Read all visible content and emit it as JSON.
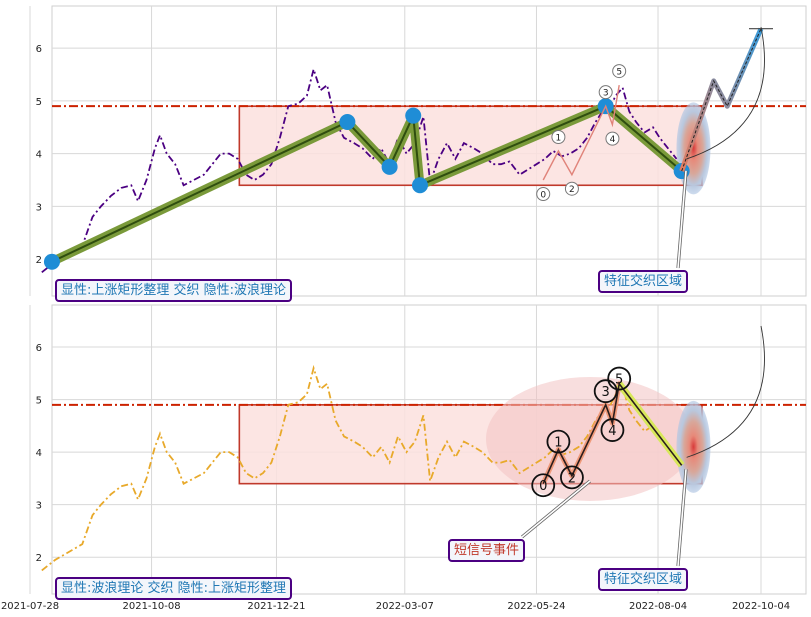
{
  "chart_data": [
    {
      "type": "line",
      "panel": "top",
      "ylim": [
        1.3,
        6.8
      ],
      "yticks": [
        "2",
        "3",
        "4",
        "5",
        "6"
      ],
      "grid": true,
      "reference_line": {
        "y": 4.9,
        "color": "#cc2200",
        "style": "dash-dot"
      },
      "box": {
        "x0": "2021-11-29",
        "x1": "2022-08-30",
        "y0": 3.4,
        "y1": 4.9,
        "fill": "#fbe1de",
        "edge": "#c0392b"
      },
      "price_series": {
        "color": "#4b0082",
        "style": "dash-dot",
        "points": [
          [
            "2021-08-04",
            1.75
          ],
          [
            "2021-08-12",
            1.95
          ],
          [
            "2021-08-20",
            2.1
          ],
          [
            "2021-08-28",
            2.25
          ],
          [
            "2021-09-03",
            2.8
          ],
          [
            "2021-09-08",
            3.0
          ],
          [
            "2021-09-14",
            3.2
          ],
          [
            "2021-09-20",
            3.35
          ],
          [
            "2021-09-26",
            3.4
          ],
          [
            "2021-09-30",
            3.1
          ],
          [
            "2021-10-05",
            3.5
          ],
          [
            "2021-10-10",
            4.1
          ],
          [
            "2021-10-13",
            4.35
          ],
          [
            "2021-10-17",
            4.0
          ],
          [
            "2021-10-22",
            3.8
          ],
          [
            "2021-10-27",
            3.4
          ],
          [
            "2021-11-02",
            3.5
          ],
          [
            "2021-11-08",
            3.6
          ],
          [
            "2021-11-13",
            3.8
          ],
          [
            "2021-11-18",
            4.0
          ],
          [
            "2021-11-23",
            4.0
          ],
          [
            "2021-11-28",
            3.9
          ],
          [
            "2021-12-03",
            3.6
          ],
          [
            "2021-12-08",
            3.5
          ],
          [
            "2021-12-13",
            3.6
          ],
          [
            "2021-12-18",
            3.8
          ],
          [
            "2021-12-23",
            4.3
          ],
          [
            "2021-12-28",
            4.9
          ],
          [
            "2022-01-03",
            4.95
          ],
          [
            "2022-01-08",
            5.1
          ],
          [
            "2022-01-12",
            5.6
          ],
          [
            "2022-01-16",
            5.2
          ],
          [
            "2022-01-20",
            5.3
          ],
          [
            "2022-01-25",
            4.6
          ],
          [
            "2022-01-30",
            4.3
          ],
          [
            "2022-02-05",
            4.2
          ],
          [
            "2022-02-10",
            4.1
          ],
          [
            "2022-02-16",
            3.9
          ],
          [
            "2022-02-21",
            4.1
          ],
          [
            "2022-02-26",
            3.8
          ],
          [
            "2022-03-03",
            4.3
          ],
          [
            "2022-03-08",
            4.0
          ],
          [
            "2022-03-13",
            4.2
          ],
          [
            "2022-03-18",
            4.7
          ],
          [
            "2022-03-22",
            3.45
          ],
          [
            "2022-03-27",
            3.9
          ],
          [
            "2022-04-01",
            4.2
          ],
          [
            "2022-04-06",
            3.9
          ],
          [
            "2022-04-11",
            4.2
          ],
          [
            "2022-04-17",
            4.1
          ],
          [
            "2022-04-22",
            4.0
          ],
          [
            "2022-04-28",
            3.8
          ],
          [
            "2022-05-03",
            3.8
          ],
          [
            "2022-05-08",
            3.85
          ],
          [
            "2022-05-14",
            3.6
          ],
          [
            "2022-05-19",
            3.7
          ],
          [
            "2022-05-24",
            3.8
          ],
          [
            "2022-05-29",
            3.9
          ],
          [
            "2022-06-03",
            4.05
          ],
          [
            "2022-06-08",
            3.95
          ],
          [
            "2022-06-13",
            4.0
          ],
          [
            "2022-06-18",
            4.1
          ],
          [
            "2022-06-23",
            4.3
          ],
          [
            "2022-06-28",
            4.6
          ],
          [
            "2022-07-02",
            4.8
          ],
          [
            "2022-07-06",
            4.85
          ],
          [
            "2022-07-10",
            5.1
          ],
          [
            "2022-07-14",
            5.25
          ],
          [
            "2022-07-18",
            4.8
          ],
          [
            "2022-07-22",
            4.6
          ],
          [
            "2022-07-27",
            4.4
          ],
          [
            "2022-08-01",
            4.5
          ],
          [
            "2022-08-05",
            4.3
          ],
          [
            "2022-08-10",
            4.1
          ],
          [
            "2022-08-15",
            3.9
          ]
        ]
      },
      "trend_series": {
        "color": "#7a9a3a",
        "points": [
          [
            "2021-08-10",
            1.95
          ],
          [
            "2022-02-01",
            4.6
          ],
          [
            "2022-02-26",
            3.75
          ],
          [
            "2022-03-12",
            4.72
          ],
          [
            "2022-03-16",
            3.4
          ],
          [
            "2022-07-04",
            4.9
          ],
          [
            "2022-08-18",
            3.67
          ]
        ]
      },
      "wave_labels": [
        {
          "label": "0",
          "x": "2022-05-28",
          "y": 3.5
        },
        {
          "label": "1",
          "x": "2022-06-06",
          "y": 4.05
        },
        {
          "label": "2",
          "x": "2022-06-14",
          "y": 3.6
        },
        {
          "label": "3",
          "x": "2022-07-04",
          "y": 4.9
        },
        {
          "label": "4",
          "x": "2022-07-08",
          "y": 4.55
        },
        {
          "label": "5",
          "x": "2022-07-12",
          "y": 5.3
        }
      ],
      "projection": [
        [
          "2022-08-18",
          3.67
        ],
        [
          "2022-09-06",
          5.38
        ],
        [
          "2022-09-14",
          4.9
        ],
        [
          "2022-10-04",
          6.37
        ]
      ],
      "annotations": {
        "title_box": "显性:上涨矩形整理 交织 隐性:波浪理论",
        "zone_box": "特征交织区域"
      }
    },
    {
      "type": "line",
      "panel": "bottom",
      "ylim": [
        1.3,
        6.8
      ],
      "yticks": [
        "2",
        "3",
        "4",
        "5",
        "6"
      ],
      "grid": true,
      "reference_line": {
        "y": 4.9,
        "color": "#cc2200",
        "style": "dash-dot"
      },
      "box": {
        "x0": "2021-11-29",
        "x1": "2022-08-30",
        "y0": 3.4,
        "y1": 4.9,
        "fill": "#fbe1de",
        "edge": "#c0392b"
      },
      "price_series": {
        "color": "#e8a92a",
        "style": "dash-dot"
      },
      "wave_series": {
        "color": "#2b1d1d",
        "points": [
          [
            "2022-05-28",
            3.4
          ],
          [
            "2022-06-06",
            4.05
          ],
          [
            "2022-06-14",
            3.55
          ],
          [
            "2022-07-04",
            4.9
          ],
          [
            "2022-07-08",
            4.55
          ],
          [
            "2022-07-12",
            5.3
          ],
          [
            "2022-08-18",
            3.75
          ]
        ]
      },
      "wave_labels": [
        {
          "label": "0",
          "x": "2022-05-28",
          "y": 3.37
        },
        {
          "label": "1",
          "x": "2022-06-06",
          "y": 4.2
        },
        {
          "label": "2",
          "x": "2022-06-14",
          "y": 3.52
        },
        {
          "label": "3",
          "x": "2022-07-04",
          "y": 5.16
        },
        {
          "label": "4",
          "x": "2022-07-08",
          "y": 4.42
        },
        {
          "label": "5",
          "x": "2022-07-12",
          "y": 5.4
        }
      ],
      "annotations": {
        "title_box": "显性:波浪理论 交织 隐性:上涨矩形整理",
        "zone_box": "特征交织区域",
        "signal_box": "短信号事件"
      }
    }
  ],
  "x_axis": {
    "ticks": [
      "2021-07-28",
      "2021-10-08",
      "2021-12-21",
      "2022-03-07",
      "2022-05-24",
      "2022-08-04",
      "2022-10-04"
    ]
  }
}
